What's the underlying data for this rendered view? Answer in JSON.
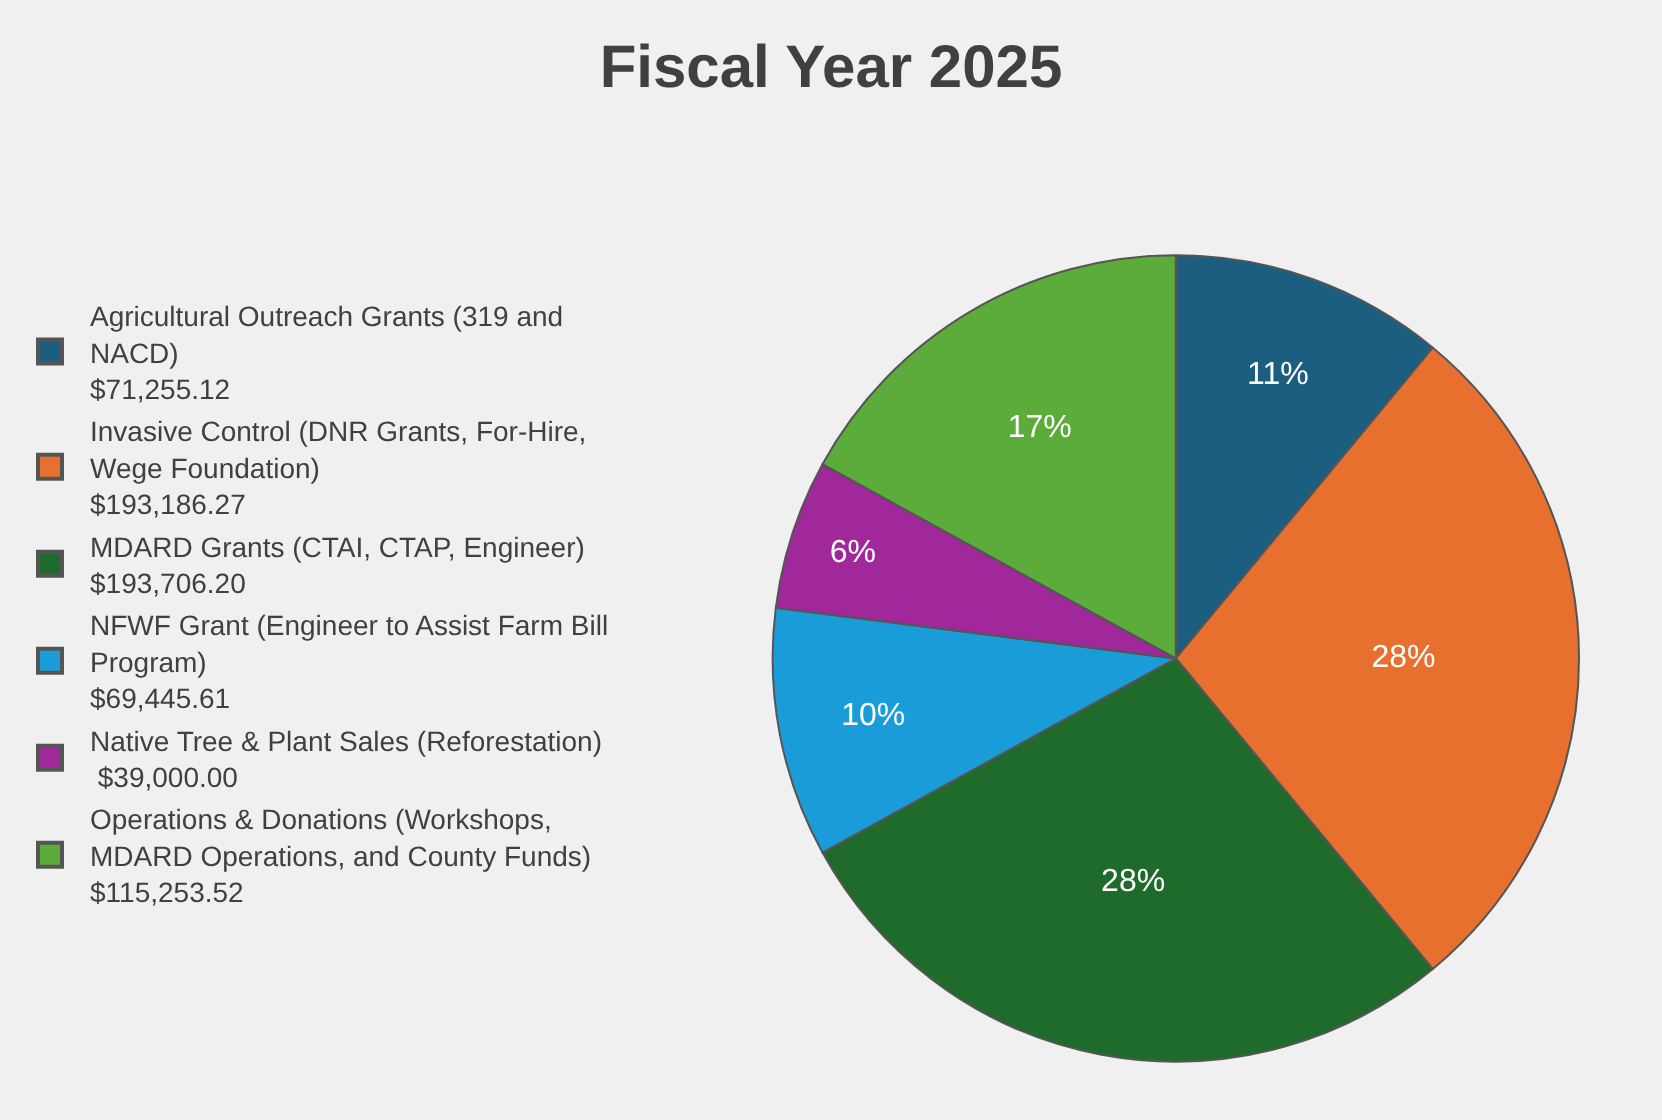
{
  "chart_data": {
    "type": "pie",
    "title": "Fiscal Year 2025",
    "categories": [
      "Agricultural Outreach Grants (319 and\nNACD)\n$71,255.12",
      "Invasive Control (DNR Grants, For-Hire,\nWege Foundation)\n$193,186.27",
      "MDARD Grants (CTAI, CTAP, Engineer)\n$193,706.20",
      "NFWF Grant (Engineer to Assist Farm Bill\nProgram)\n$69,445.61",
      "Native Tree & Plant Sales (Reforestation)\n $39,000.00",
      "Operations & Donations (Workshops,\nMDARD Operations, and County Funds)\n$115,253.52"
    ],
    "values": [
      11,
      28,
      28,
      10,
      6,
      17
    ],
    "value_labels": [
      "11%",
      "28%",
      "28%",
      "10%",
      "6%",
      "17%"
    ],
    "colors": [
      "#1b5e80",
      "#e8702f",
      "#1e6b2b",
      "#1a9cd8",
      "#a0289a",
      "#5bac3a"
    ],
    "legend": "left"
  }
}
